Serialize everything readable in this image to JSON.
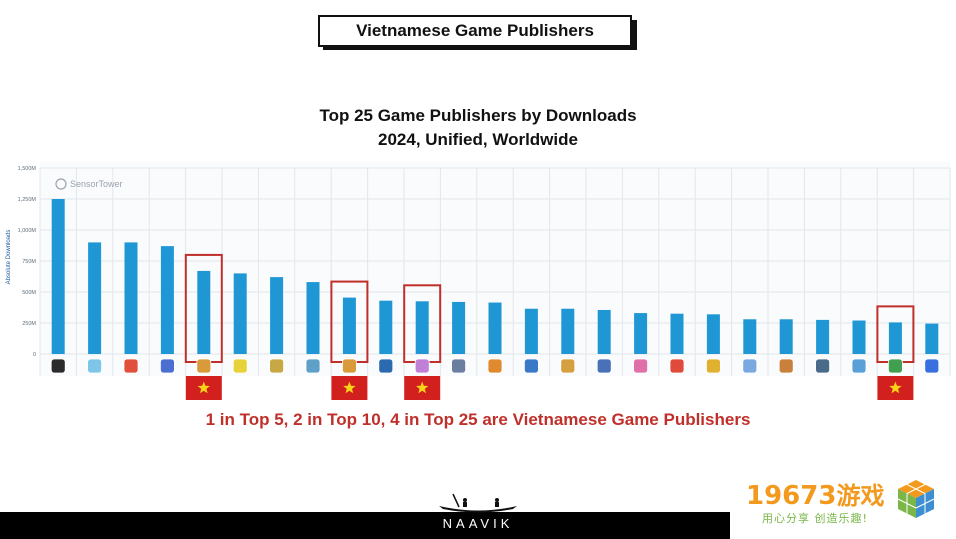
{
  "header": {
    "badge": "Vietnamese Game Publishers"
  },
  "chart_title_line1": "Top 25 Game Publishers by Downloads",
  "chart_title_line2": "2024, Unified, Worldwide",
  "callout": "1 in Top 5, 2 in Top 10, 4 in Top 25 are Vietnamese Game Publishers",
  "footer": {
    "brand": "NAAVIK"
  },
  "watermark": {
    "text_num": "19673",
    "text_cn": "游戏",
    "subtitle": "用心分享 创造乐趣!"
  },
  "sensortower_label": "SensorTower",
  "colors": {
    "bar": "#1f97d4",
    "highlight": "#c0302b",
    "flag_bg": "#d1201d",
    "flag_star": "#f7d417"
  },
  "chart_data": {
    "type": "bar",
    "title": "Top 25 Game Publishers by Downloads",
    "subtitle": "2024, Unified, Worldwide",
    "xlabel": "",
    "ylabel": "Absolute Downloads",
    "ylim": [
      0,
      1500
    ],
    "y_ticks": [
      0,
      250,
      500,
      750,
      1000,
      1250,
      1500
    ],
    "y_tick_labels": [
      "0",
      "250M",
      "500M",
      "750M",
      "1,000M",
      "1,250M",
      "1,500M"
    ],
    "values": [
      1250,
      900,
      900,
      870,
      670,
      650,
      620,
      580,
      455,
      430,
      425,
      420,
      415,
      365,
      365,
      355,
      330,
      325,
      320,
      280,
      280,
      275,
      270,
      255,
      245
    ],
    "vietnamese_ranks": [
      5,
      9,
      11,
      24
    ],
    "grid": true
  }
}
